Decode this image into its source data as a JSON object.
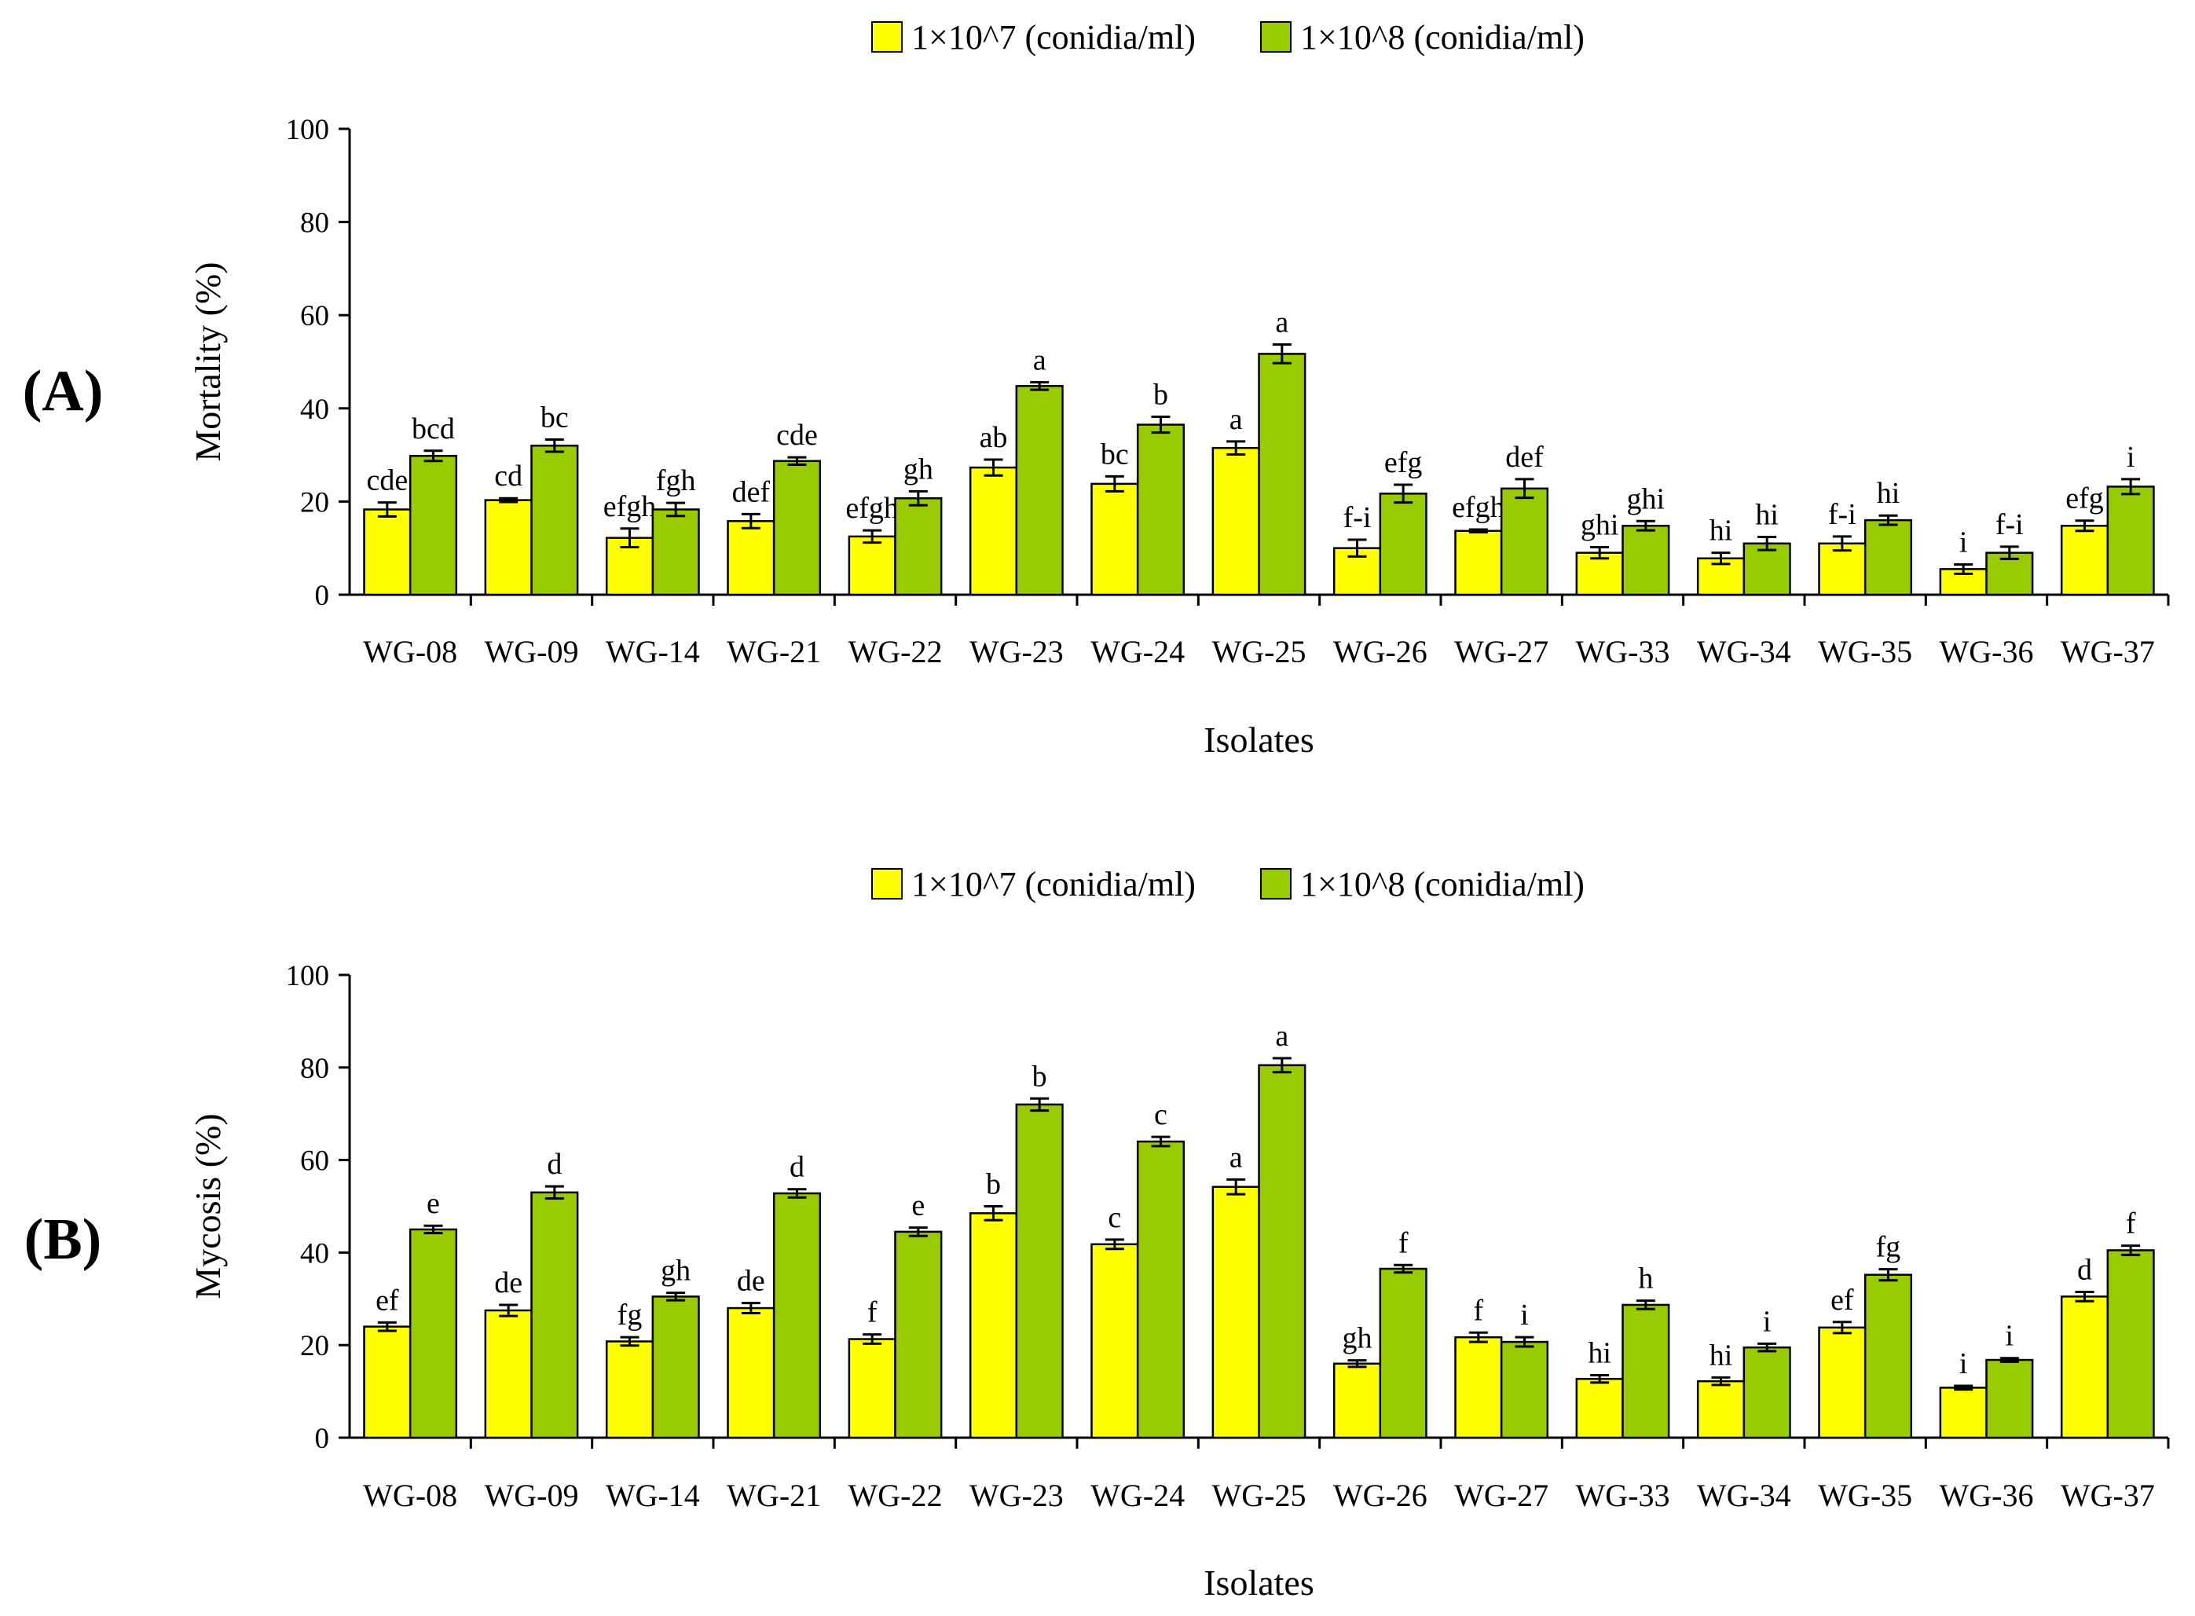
{
  "colors": {
    "low": "#FFFF00",
    "high": "#99CC00",
    "stroke": "#000000"
  },
  "chart_data": [
    {
      "type": "bar",
      "panel_label": "(A)",
      "legend": [
        "1×10^7 (conidia/ml)",
        "1×10^8 (conidia/ml)"
      ],
      "xlabel": "Isolates",
      "ylabel": "Mortality (%)",
      "ylim": [
        0,
        100
      ],
      "yticks": [
        "0",
        "20",
        "40",
        "60",
        "80",
        "100"
      ],
      "categories": [
        "WG-08",
        "WG-09",
        "WG-14",
        "WG-21",
        "WG-22",
        "WG-23",
        "WG-24",
        "WG-25",
        "WG-26",
        "WG-27",
        "WG-33",
        "WG-34",
        "WG-35",
        "WG-36",
        "WG-37"
      ],
      "series": [
        {
          "name": "1×10^7 (conidia/ml)",
          "values": [
            18.3,
            20.3,
            12.2,
            15.8,
            12.5,
            27.3,
            23.8,
            31.5,
            10.0,
            13.7,
            9.0,
            7.8,
            11.0,
            5.5,
            14.8
          ],
          "errors": [
            1.5,
            0.4,
            2.0,
            1.5,
            1.3,
            1.7,
            1.6,
            1.4,
            1.8,
            0.3,
            1.2,
            1.2,
            1.5,
            1.0,
            1.1
          ],
          "letters": [
            "cde",
            "cd",
            "efgh",
            "def",
            "efgh",
            "ab",
            "bc",
            "a",
            "f-i",
            "efgh",
            "ghi",
            "hi",
            "f-i",
            "i",
            "efg"
          ]
        },
        {
          "name": "1×10^8 (conidia/ml)",
          "values": [
            29.8,
            32.0,
            18.3,
            28.7,
            20.7,
            44.8,
            36.5,
            51.7,
            21.7,
            22.8,
            14.8,
            11.0,
            16.0,
            9.0,
            23.2
          ],
          "errors": [
            1.1,
            1.3,
            1.4,
            0.8,
            1.5,
            0.8,
            1.7,
            2.0,
            1.9,
            2.0,
            1.0,
            1.4,
            1.0,
            1.3,
            1.6
          ],
          "letters": [
            "bcd",
            "bc",
            "fgh",
            "cde",
            "gh",
            "a",
            "b",
            "a",
            "efg",
            "def",
            "ghi",
            "hi",
            "hi",
            "f-i",
            "i"
          ]
        }
      ]
    },
    {
      "type": "bar",
      "panel_label": "(B)",
      "legend": [
        "1×10^7 (conidia/ml)",
        "1×10^8 (conidia/ml)"
      ],
      "xlabel": "Isolates",
      "ylabel": "Mycosis (%)",
      "ylim": [
        0,
        100
      ],
      "yticks": [
        "0",
        "20",
        "40",
        "60",
        "80",
        "100"
      ],
      "categories": [
        "WG-08",
        "WG-09",
        "WG-14",
        "WG-21",
        "WG-22",
        "WG-23",
        "WG-24",
        "WG-25",
        "WG-26",
        "WG-27",
        "WG-33",
        "WG-34",
        "WG-35",
        "WG-36",
        "WG-37"
      ],
      "series": [
        {
          "name": "1×10^7 (conidia/ml)",
          "values": [
            24.0,
            27.5,
            20.8,
            28.0,
            21.3,
            48.5,
            41.8,
            54.2,
            16.0,
            21.7,
            12.7,
            12.2,
            23.8,
            10.8,
            30.5
          ],
          "errors": [
            0.9,
            1.2,
            0.9,
            1.1,
            1.0,
            1.5,
            1.0,
            1.6,
            0.7,
            1.0,
            0.8,
            0.8,
            1.2,
            0.4,
            1.0
          ],
          "letters": [
            "ef",
            "de",
            "fg",
            "de",
            "f",
            "b",
            "c",
            "a",
            "gh",
            "f",
            "hi",
            "hi",
            "ef",
            "i",
            "d"
          ]
        },
        {
          "name": "1×10^8 (conidia/ml)",
          "values": [
            45.0,
            53.0,
            30.5,
            52.8,
            44.5,
            72.0,
            64.0,
            80.5,
            36.5,
            20.7,
            28.7,
            19.5,
            35.2,
            16.8,
            40.5
          ],
          "errors": [
            0.8,
            1.3,
            0.8,
            0.9,
            0.9,
            1.3,
            1.0,
            1.5,
            0.8,
            1.0,
            0.9,
            0.8,
            1.2,
            0.4,
            1.0
          ],
          "letters": [
            "e",
            "d",
            "gh",
            "d",
            "e",
            "b",
            "c",
            "a",
            "f",
            "i",
            "h",
            "i",
            "fg",
            "i",
            "f"
          ]
        }
      ]
    }
  ]
}
